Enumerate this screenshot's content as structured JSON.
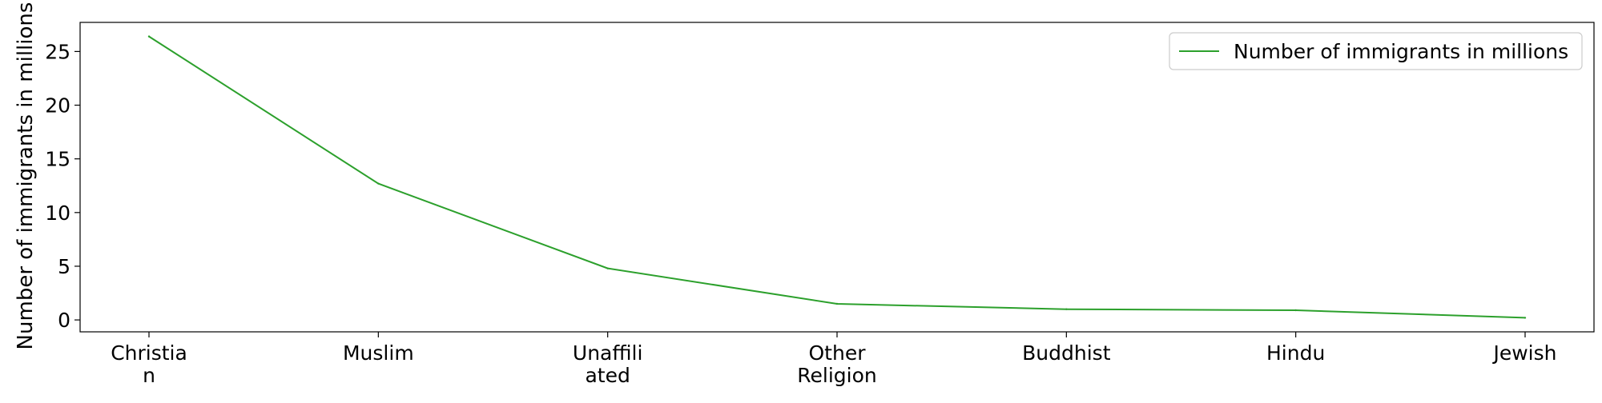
{
  "chart_data": {
    "type": "line",
    "title": "",
    "xlabel": "",
    "ylabel": "Number of immigrants in millions",
    "categories": [
      [
        "Christia",
        "n"
      ],
      [
        "Muslim"
      ],
      [
        "Unaffili",
        "ated"
      ],
      [
        "Other",
        "Religion"
      ],
      [
        "Buddhist"
      ],
      [
        "Hindu"
      ],
      [
        "Jewish"
      ]
    ],
    "series": [
      {
        "name": "Number of immigrants in millions",
        "color": "#2ca02c",
        "values": [
          26.4,
          12.7,
          4.8,
          1.5,
          1.0,
          0.9,
          0.2
        ]
      }
    ],
    "yticks": [
      0,
      5,
      10,
      15,
      20,
      25
    ],
    "ylim": [
      -1.11,
      27.71
    ],
    "grid": false,
    "legend_position": "top-right"
  }
}
